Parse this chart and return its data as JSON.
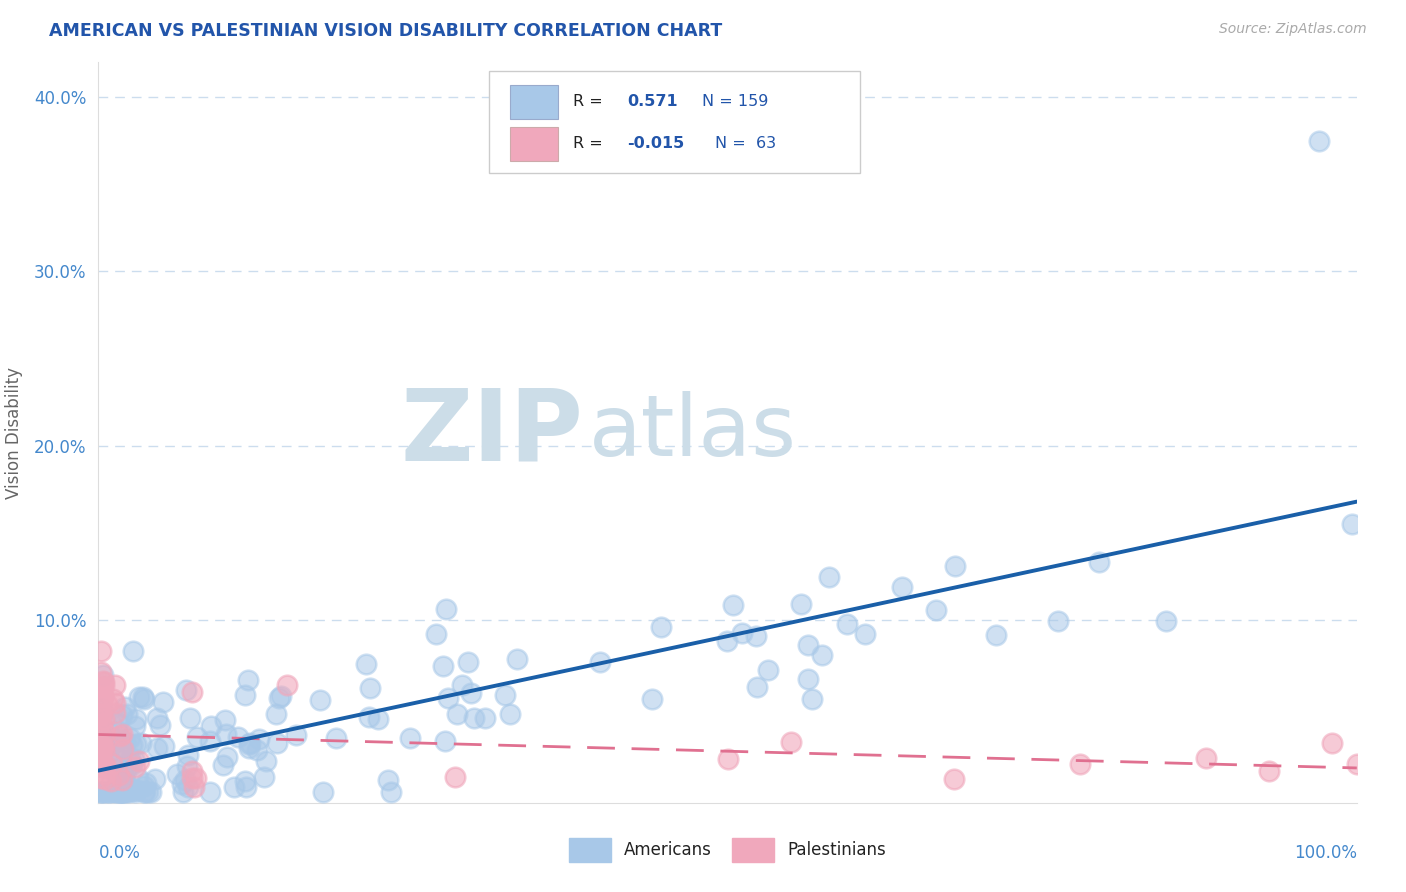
{
  "title": "AMERICAN VS PALESTINIAN VISION DISABILITY CORRELATION CHART",
  "source": "Source: ZipAtlas.com",
  "ylabel": "Vision Disability",
  "american_color": "#a8c8e8",
  "american_edge_color": "#a8c8e8",
  "american_line_color": "#1a5fa8",
  "palestinian_color": "#f0a8bc",
  "palestinian_edge_color": "#f0a8bc",
  "palestinian_line_color": "#e07090",
  "watermark_zip": "ZIP",
  "watermark_atlas": "atlas",
  "watermark_color": "#ccdde8",
  "background_color": "#ffffff",
  "grid_color": "#ccddee",
  "legend_R_american": "0.571",
  "legend_N_american": "159",
  "legend_R_palestinian": "-0.015",
  "legend_N_palestinian": "63",
  "title_color": "#2255aa",
  "axis_tick_color": "#4488cc",
  "ylabel_color": "#666666",
  "legend_text_color": "#222222",
  "legend_R_color": "#2255aa",
  "xlim": [
    0.0,
    1.0
  ],
  "ylim": [
    -0.005,
    0.42
  ],
  "yticks": [
    0.0,
    0.1,
    0.2,
    0.3,
    0.4
  ],
  "ytick_labels": [
    "",
    "10.0%",
    "20.0%",
    "30.0%",
    "40.0%"
  ]
}
